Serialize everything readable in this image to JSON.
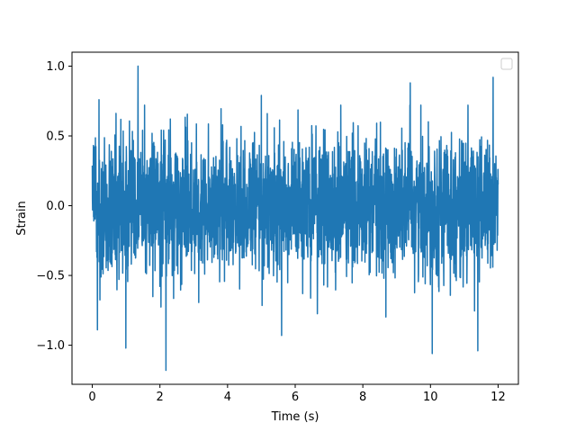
{
  "chart_data": {
    "type": "line",
    "xlabel": "Time (s)",
    "ylabel": "Strain",
    "xlim": [
      -0.6,
      12.6
    ],
    "ylim": [
      -1.28,
      1.1
    ],
    "xticks": [
      0,
      2,
      4,
      6,
      8,
      10,
      12
    ],
    "xtick_labels": [
      "0",
      "2",
      "4",
      "6",
      "8",
      "10",
      "12"
    ],
    "yticks": [
      -1.0,
      -0.5,
      0.0,
      0.5,
      1.0
    ],
    "ytick_labels": [
      "−1.0",
      "−0.5",
      "0.0",
      "0.5",
      "1.0"
    ],
    "grid": false,
    "legend": {
      "position": "top-right",
      "entries": []
    },
    "series": [
      {
        "color": "#1f77b4",
        "x_start": 0,
        "x_end": 12,
        "envelope_max": 1.0,
        "envelope_min": -1.18,
        "peaks": [
          {
            "x": 1.35,
            "y": 1.0
          },
          {
            "x": 0.2,
            "y": 0.76
          },
          {
            "x": 5.0,
            "y": 0.79
          },
          {
            "x": 9.4,
            "y": 0.88
          },
          {
            "x": 11.85,
            "y": 0.92
          }
        ],
        "troughs": [
          {
            "x": 2.18,
            "y": -1.18
          },
          {
            "x": 0.99,
            "y": -1.02
          },
          {
            "x": 10.05,
            "y": -1.06
          },
          {
            "x": 11.4,
            "y": -1.04
          },
          {
            "x": 0.15,
            "y": -0.89
          },
          {
            "x": 5.6,
            "y": -0.93
          }
        ]
      }
    ]
  }
}
